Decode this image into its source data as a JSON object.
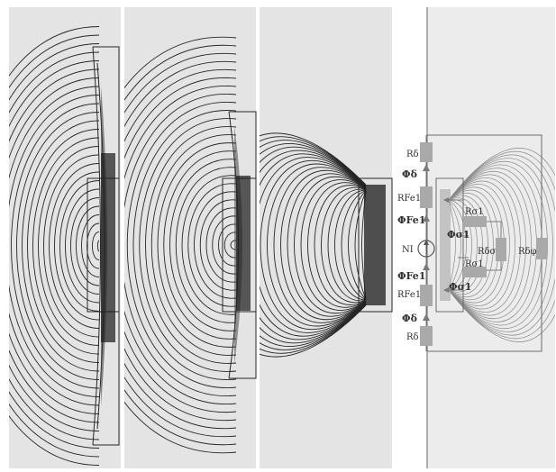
{
  "figure": {
    "background": "#ffffff",
    "panel_fill": "#e4e4e4",
    "line_color": "#262626",
    "faint_line_color": "#8a8a8a",
    "resistor_fill": "#a9a9a9",
    "panels": [
      {
        "id": "a",
        "kind": "field-lines"
      },
      {
        "id": "b",
        "kind": "field-lines"
      },
      {
        "id": "c",
        "kind": "field-lines"
      },
      {
        "id": "d",
        "kind": "field-lines-with-equivalent-circuit"
      }
    ]
  },
  "circuit": {
    "r_delta_top": "Rδ",
    "phi_delta_top": "Φδ",
    "r_fe1_top": "RFe1",
    "phi_fe1_top": "ΦFe1",
    "mmf": "NI",
    "phi_fe1_bottom": "ΦFe1",
    "r_fe1_bottom": "RFe1",
    "phi_delta_bottom": "Φδ",
    "r_delta_bottom": "Rδ",
    "r_sigma1_top": "Rσ1",
    "phi_sigma1_top": "Φσ1",
    "r_delta_sigma": "Rδσ",
    "r_delta_phi": "Rδφ",
    "r_sigma1_bottom": "Rσ1",
    "phi_sigma1_bottom": "Φσ1"
  }
}
